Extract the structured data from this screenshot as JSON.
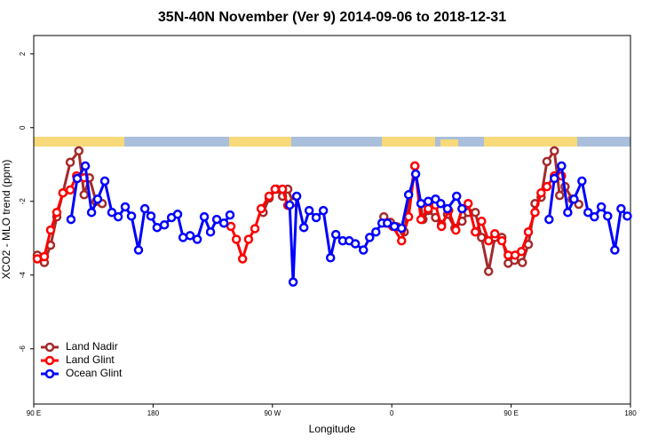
{
  "chart_data": {
    "type": "line",
    "title": "35N-40N November (Ver 9)   2014-09-06 to 2018-12-31",
    "x_label": "Longitude",
    "y_label": "XCO2 - MLO trend (ppm)",
    "xlim": [
      90,
      540
    ],
    "ylim": [
      -7.5,
      2.5
    ],
    "xticks": [
      {
        "value": 90,
        "label": "90 E"
      },
      180,
      {
        "value": 270,
        "label": "90 W"
      },
      {
        "value": 360,
        "label": "0"
      },
      {
        "value": 450,
        "label": "90 E"
      },
      {
        "value": 540,
        "label": "180"
      }
    ],
    "yticks": [
      2,
      0,
      -2,
      -4,
      -6
    ],
    "legend": "bottom-left",
    "series": [
      {
        "name": "Land Nadir",
        "color": "#a52a2a",
        "x": [
          92.7,
          98,
          102.7,
          107.4,
          112,
          117.5,
          124,
          128,
          132,
          137,
          141.6,
          null,
          263,
          267.5,
          273,
          277.6,
          281.6,
          285.6,
          null,
          354,
          359,
          364,
          369.4,
          377.4,
          383.5,
          387.5,
          393,
          397.5,
          402,
          407.6,
          413,
          417.6,
          423,
          427.7,
          433,
          437.7,
          443,
          447.8,
          452.5,
          458.5,
          463,
          468,
          472.6,
          477,
          482.6,
          486.6,
          490.7,
          496,
          501
        ],
        "values": [
          -3.46,
          -3.66,
          -3.19,
          -2.42,
          -1.77,
          -0.94,
          -0.63,
          -1.82,
          -1.36,
          -2.0,
          -2.06,
          null,
          -2.3,
          -1.91,
          -1.67,
          -1.86,
          -1.67,
          -2.03,
          null,
          -2.42,
          -2.57,
          -2.69,
          -2.83,
          -1.04,
          -2.49,
          -2.25,
          -2.44,
          -2.63,
          -2.35,
          -2.73,
          -2.54,
          -2.3,
          -2.3,
          -2.98,
          -3.9,
          -2.98,
          -2.98,
          -3.68,
          -3.6,
          -3.66,
          -3.17,
          -2.06,
          -1.89,
          -0.92,
          -0.63,
          -1.84,
          -1.6,
          -1.94,
          -2.08
        ]
      },
      {
        "name": "Land Glint",
        "color": "#ff0000",
        "x": [
          92.7,
          98,
          102.7,
          107.4,
          112,
          117.5,
          122.3,
          128,
          null,
          238.7,
          242.8,
          247.5,
          252,
          256.8,
          261.5,
          267.5,
          272,
          277.6,
          281.6,
          null,
          355.3,
          360.7,
          367.4,
          372.7,
          377.4,
          382,
          387.5,
          393,
          397.5,
          402.9,
          408.3,
          413,
          417.6,
          423,
          427.7,
          433,
          437.7,
          443,
          447.8,
          453,
          457.8,
          463,
          468,
          472.6,
          477,
          482.6,
          488
        ],
        "values": [
          -3.56,
          -3.5,
          -2.78,
          -2.3,
          -1.77,
          -1.69,
          -1.31,
          -1.36,
          null,
          -2.68,
          -3.03,
          -3.56,
          -3.03,
          -2.74,
          -2.2,
          -1.86,
          -1.67,
          -1.67,
          -2.11,
          null,
          -2.59,
          -2.68,
          -3.07,
          -2.42,
          -1.04,
          -2.49,
          -2.2,
          -2.1,
          -2.68,
          -2.25,
          -2.78,
          -2.2,
          -2.06,
          -2.83,
          -2.54,
          -3.07,
          -2.88,
          -3.07,
          -3.46,
          -3.46,
          -3.36,
          -2.83,
          -2.3,
          -1.77,
          -1.6,
          -1.31,
          -1.31
        ]
      },
      {
        "name": "Ocean Glint",
        "color": "#0000ff",
        "x": [
          118.1,
          122.8,
          128.9,
          133.6,
          138.2,
          143.6,
          148.9,
          153.7,
          159,
          163.7,
          169,
          173.8,
          178.4,
          183,
          188.5,
          193.9,
          198.5,
          202.6,
          207.9,
          213.3,
          218.6,
          223.3,
          228,
          233.4,
          238,
          null,
          283,
          285.6,
          288.3,
          293.7,
          297.7,
          303,
          308.4,
          313.8,
          317.8,
          323,
          327.9,
          332.5,
          338.6,
          343.3,
          348,
          352.6,
          356.7,
          362,
          367.4,
          372.7,
          378,
          382,
          387.5,
          393,
          396.9,
          402,
          408.9,
          413,
          null,
          478.6,
          482.6,
          488,
          492.7,
          497.4,
          503.4,
          508,
          512.8,
          518,
          522.8,
          528.2,
          532.9,
          537.6
        ],
        "values": [
          -2.49,
          -1.38,
          -1.04,
          -2.3,
          -1.94,
          -1.45,
          -2.3,
          -2.42,
          -2.15,
          -2.4,
          -3.32,
          -2.2,
          -2.4,
          -2.71,
          -2.64,
          -2.44,
          -2.35,
          -2.98,
          -2.93,
          -3.03,
          -2.42,
          -2.83,
          -2.49,
          -2.59,
          -2.37,
          null,
          -2.1,
          -4.19,
          -1.86,
          -2.71,
          -2.25,
          -2.44,
          -2.25,
          -3.53,
          -2.9,
          -3.07,
          -3.07,
          -3.15,
          -3.32,
          -2.98,
          -2.83,
          -2.59,
          -2.59,
          -2.68,
          -2.73,
          -1.82,
          -1.26,
          -2.06,
          -2.0,
          -1.94,
          -2.06,
          -2.2,
          -1.86,
          -2.2,
          null,
          -2.49,
          -1.38,
          -1.04,
          -2.3,
          -1.94,
          -1.45,
          -2.3,
          -2.42,
          -2.15,
          -2.4,
          -3.32,
          -2.2,
          -2.4
        ]
      }
    ]
  }
}
